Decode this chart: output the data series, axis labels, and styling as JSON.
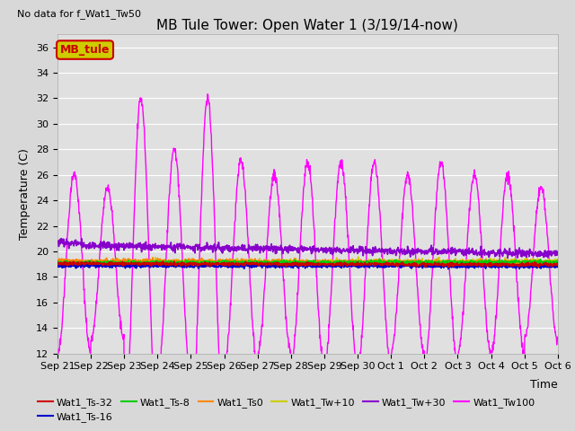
{
  "title": "MB Tule Tower: Open Water 1 (3/19/14-now)",
  "no_data_text": "No data for f_Wat1_Tw50",
  "xlabel": "Time",
  "ylabel": "Temperature (C)",
  "ylim": [
    12,
    37
  ],
  "yticks": [
    12,
    14,
    16,
    18,
    20,
    22,
    24,
    26,
    28,
    30,
    32,
    34,
    36
  ],
  "bg_color": "#d8d8d8",
  "plot_bg_color": "#e0e0e0",
  "grid_color": "white",
  "series": {
    "Wat1_Ts-32": {
      "color": "#cc0000",
      "lw": 1.2
    },
    "Wat1_Ts-16": {
      "color": "#0000cc",
      "lw": 1.2
    },
    "Wat1_Ts-8": {
      "color": "#00cc00",
      "lw": 1.2
    },
    "Wat1_Ts0": {
      "color": "#ff8800",
      "lw": 1.2
    },
    "Wat1_Tw+10": {
      "color": "#cccc00",
      "lw": 1.2
    },
    "Wat1_Tw+30": {
      "color": "#8800cc",
      "lw": 1.2
    },
    "Wat1_Tw100": {
      "color": "#ff00ff",
      "lw": 1.0
    }
  },
  "legend_box": {
    "label": "MB_tule",
    "facecolor": "#cccc00",
    "edgecolor": "#cc0000",
    "textcolor": "#cc0000",
    "fontsize": 9
  },
  "title_fontsize": 11,
  "axis_label_fontsize": 9,
  "tick_fontsize": 8,
  "nodata_fontsize": 8,
  "legend_fontsize": 8
}
